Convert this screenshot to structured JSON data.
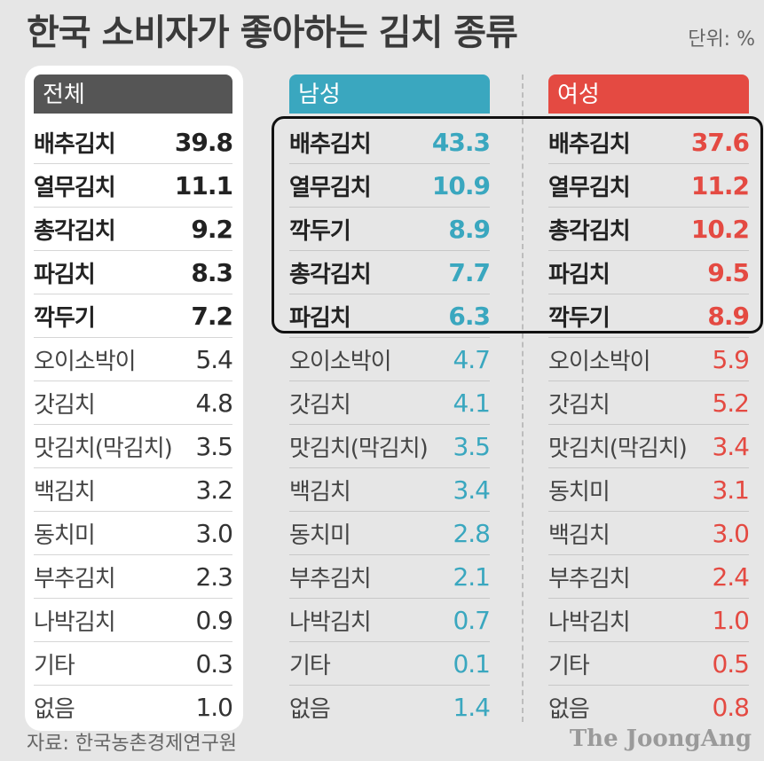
{
  "title": "한국 소비자가 좋아하는 김치 종류",
  "unit": "단위: %",
  "source": "자료: 한국농촌경제연구원",
  "logo": "The JoongAng",
  "colors": {
    "total": "#555555",
    "male": "#3aa7bf",
    "female": "#e44a42"
  },
  "chart_data": {
    "type": "table",
    "title": "한국 소비자가 좋아하는 김치 종류",
    "unit": "단위: %",
    "groups": [
      {
        "name": "전체",
        "rows": [
          {
            "label": "배추김치",
            "value": "39.8"
          },
          {
            "label": "열무김치",
            "value": "11.1"
          },
          {
            "label": "총각김치",
            "value": "9.2"
          },
          {
            "label": "파김치",
            "value": "8.3"
          },
          {
            "label": "깍두기",
            "value": "7.2"
          },
          {
            "label": "오이소박이",
            "value": "5.4"
          },
          {
            "label": "갓김치",
            "value": "4.8"
          },
          {
            "label": "맛김치(막김치)",
            "value": "3.5"
          },
          {
            "label": "백김치",
            "value": "3.2"
          },
          {
            "label": "동치미",
            "value": "3.0"
          },
          {
            "label": "부추김치",
            "value": "2.3"
          },
          {
            "label": "나박김치",
            "value": "0.9"
          },
          {
            "label": "기타",
            "value": "0.3"
          },
          {
            "label": "없음",
            "value": "1.0"
          }
        ]
      },
      {
        "name": "남성",
        "rows": [
          {
            "label": "배추김치",
            "value": "43.3"
          },
          {
            "label": "열무김치",
            "value": "10.9"
          },
          {
            "label": "깍두기",
            "value": "8.9"
          },
          {
            "label": "총각김치",
            "value": "7.7"
          },
          {
            "label": "파김치",
            "value": "6.3"
          },
          {
            "label": "오이소박이",
            "value": "4.7"
          },
          {
            "label": "갓김치",
            "value": "4.1"
          },
          {
            "label": "맛김치(막김치)",
            "value": "3.5"
          },
          {
            "label": "백김치",
            "value": "3.4"
          },
          {
            "label": "동치미",
            "value": "2.8"
          },
          {
            "label": "부추김치",
            "value": "2.1"
          },
          {
            "label": "나박김치",
            "value": "0.7"
          },
          {
            "label": "기타",
            "value": "0.1"
          },
          {
            "label": "없음",
            "value": "1.4"
          }
        ]
      },
      {
        "name": "여성",
        "rows": [
          {
            "label": "배추김치",
            "value": "37.6"
          },
          {
            "label": "열무김치",
            "value": "11.2"
          },
          {
            "label": "총각김치",
            "value": "10.2"
          },
          {
            "label": "파김치",
            "value": "9.5"
          },
          {
            "label": "깍두기",
            "value": "8.9"
          },
          {
            "label": "오이소박이",
            "value": "5.9"
          },
          {
            "label": "갓김치",
            "value": "5.2"
          },
          {
            "label": "맛김치(막김치)",
            "value": "3.4"
          },
          {
            "label": "동치미",
            "value": "3.1"
          },
          {
            "label": "백김치",
            "value": "3.0"
          },
          {
            "label": "부추김치",
            "value": "2.4"
          },
          {
            "label": "나박김치",
            "value": "1.0"
          },
          {
            "label": "기타",
            "value": "0.5"
          },
          {
            "label": "없음",
            "value": "0.8"
          }
        ]
      }
    ]
  }
}
